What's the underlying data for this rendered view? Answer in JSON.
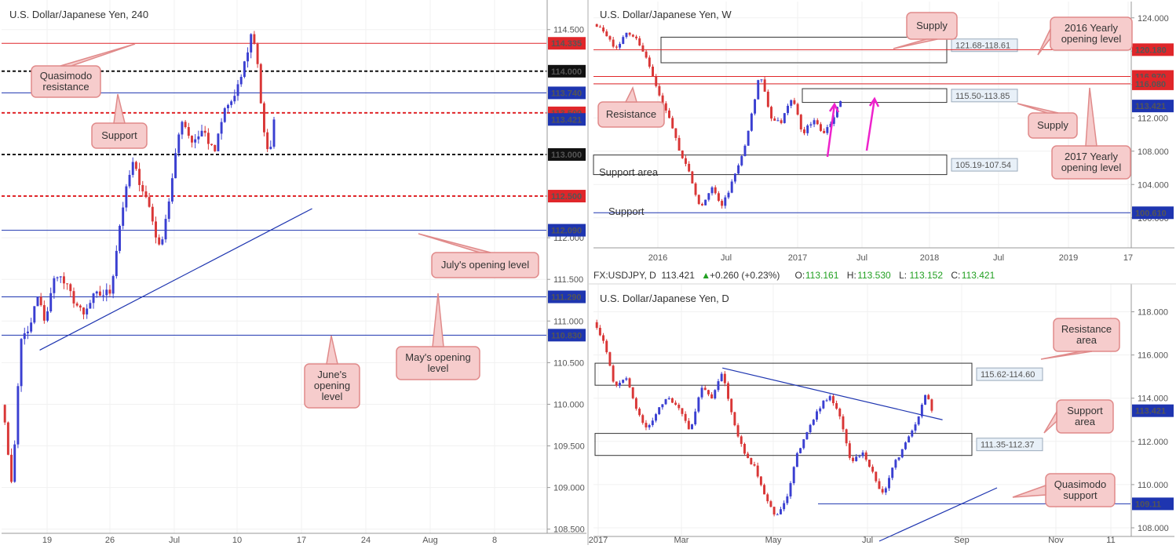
{
  "colors": {
    "bull": "#3a3fd1",
    "bear": "#d93636",
    "red_level": "#e0262a",
    "blue_level": "#1e35b0",
    "black_level": "#111111",
    "callout_fill": "#f6cccc",
    "callout_stroke": "#e08a8a",
    "magenta_arrow": "#ee22cc",
    "grid": "#f1f1f1"
  },
  "chart_data": [
    {
      "id": "h4",
      "type": "candlestick",
      "title": "U.S. Dollar/Japanese Yen, 240",
      "ylim": [
        108.45,
        114.78
      ],
      "x_labels": [
        "19",
        "26",
        "Jul",
        "10",
        "17",
        "24",
        "Aug",
        "8"
      ],
      "y_ticks": [
        "114.500",
        "114.000",
        "113.500",
        "113.000",
        "112.500",
        "112.000",
        "111.500",
        "111.000",
        "110.500",
        "110.000",
        "109.500",
        "109.000",
        "108.500"
      ],
      "levels": [
        {
          "value": 114.335,
          "label": "114.335",
          "color": "red",
          "style": "solid"
        },
        {
          "value": 114.0,
          "label": "114.000",
          "color": "black",
          "style": "dotted"
        },
        {
          "value": 113.74,
          "label": "113.740",
          "color": "blue",
          "style": "solid"
        },
        {
          "value": 113.5,
          "label": "113.500",
          "color": "red",
          "style": "dotted"
        },
        {
          "value": 113.0,
          "label": "113.000",
          "color": "black",
          "style": "dotted"
        },
        {
          "value": 112.5,
          "label": "112.500",
          "color": "red",
          "style": "dotted"
        },
        {
          "value": 112.09,
          "label": "112.090",
          "color": "blue",
          "style": "solid"
        },
        {
          "value": 111.29,
          "label": "111.290",
          "color": "blue",
          "style": "solid"
        },
        {
          "value": 110.83,
          "label": "110.830",
          "color": "blue",
          "style": "solid"
        }
      ],
      "current_price": {
        "value": 113.421,
        "label": "113.421"
      },
      "trendline": {
        "from": [
          0.07,
          110.65
        ],
        "to": [
          0.57,
          112.35
        ]
      },
      "series_path": [
        [
          0,
          110.05
        ],
        [
          0.02,
          109.0
        ],
        [
          0.035,
          110.8
        ],
        [
          0.05,
          110.85
        ],
        [
          0.065,
          111.3
        ],
        [
          0.08,
          111.0
        ],
        [
          0.1,
          111.6
        ],
        [
          0.12,
          111.4
        ],
        [
          0.15,
          111.05
        ],
        [
          0.17,
          111.3
        ],
        [
          0.2,
          111.35
        ],
        [
          0.22,
          112.3
        ],
        [
          0.24,
          112.9
        ],
        [
          0.27,
          112.4
        ],
        [
          0.29,
          111.85
        ],
        [
          0.31,
          112.55
        ],
        [
          0.33,
          113.45
        ],
        [
          0.35,
          113.15
        ],
        [
          0.37,
          113.3
        ],
        [
          0.39,
          113.0
        ],
        [
          0.41,
          113.55
        ],
        [
          0.43,
          113.7
        ],
        [
          0.45,
          114.2
        ],
        [
          0.46,
          114.5
        ],
        [
          0.47,
          114.1
        ],
        [
          0.48,
          113.3
        ],
        [
          0.49,
          112.95
        ],
        [
          0.5,
          113.42
        ]
      ],
      "annotations": [
        {
          "text": "Quasimodo\nresistance"
        },
        {
          "text": "Support"
        },
        {
          "text": "July's opening level"
        },
        {
          "text": "June's\nopening\nlevel"
        },
        {
          "text": "May's opening\nlevel"
        }
      ]
    },
    {
      "id": "weekly",
      "type": "candlestick",
      "title": "U.S. Dollar/Japanese Yen, W",
      "ylim": [
        96.4,
        125.2
      ],
      "x_labels": [
        "2016",
        "Jul",
        "2017",
        "Jul",
        "2018",
        "Jul",
        "2019",
        "17"
      ],
      "y_ticks": [
        "124.000",
        "120.000",
        "116.000",
        "112.000",
        "108.000",
        "104.000",
        "100.000"
      ],
      "levels": [
        {
          "value": 120.18,
          "label": "120.180",
          "color": "red"
        },
        {
          "value": 116.97,
          "label": "116.970",
          "color": "red"
        },
        {
          "value": 116.08,
          "label": "116.080",
          "color": "red"
        },
        {
          "value": 100.61,
          "label": "100.610",
          "color": "blue"
        }
      ],
      "current_price": {
        "value": 113.421,
        "label": "113.421"
      },
      "zones": [
        {
          "top": 121.68,
          "bottom": 118.61,
          "label": "121.68-118.61"
        },
        {
          "top": 115.5,
          "bottom": 113.85,
          "label": "115.50-113.85"
        },
        {
          "top": 107.54,
          "bottom": 105.19,
          "label": "105.19-107.54"
        }
      ],
      "series_path": [
        [
          0,
          123.5
        ],
        [
          0.02,
          122.5
        ],
        [
          0.04,
          120.0
        ],
        [
          0.06,
          122.0
        ],
        [
          0.08,
          121.5
        ],
        [
          0.1,
          119.0
        ],
        [
          0.12,
          115.0
        ],
        [
          0.14,
          112.0
        ],
        [
          0.16,
          108.0
        ],
        [
          0.18,
          105.0
        ],
        [
          0.2,
          101.0
        ],
        [
          0.22,
          103.5
        ],
        [
          0.24,
          101.5
        ],
        [
          0.26,
          104.5
        ],
        [
          0.28,
          108.0
        ],
        [
          0.3,
          114.0
        ],
        [
          0.31,
          117.5
        ],
        [
          0.33,
          112.0
        ],
        [
          0.35,
          111.5
        ],
        [
          0.37,
          114.5
        ],
        [
          0.39,
          110.0
        ],
        [
          0.41,
          112.0
        ],
        [
          0.43,
          110.0
        ],
        [
          0.45,
          112.5
        ],
        [
          0.46,
          114.0
        ]
      ],
      "annotations": [
        {
          "text": "Supply"
        },
        {
          "text": "2016 Yearly\nopening level"
        },
        {
          "text": "Resistance"
        },
        {
          "text": "Supply"
        },
        {
          "text": "2017 Yearly\nopening level"
        },
        {
          "text": "Support area"
        },
        {
          "text": "Support"
        }
      ]
    },
    {
      "id": "daily",
      "type": "candlestick",
      "title": "U.S. Dollar/Japanese Yen, D",
      "ylim": [
        107.6,
        119.0
      ],
      "x_labels": [
        "2017",
        "Mar",
        "May",
        "Jul",
        "Sep",
        "Nov",
        "11"
      ],
      "y_ticks": [
        "118.000",
        "116.000",
        "114.000",
        "112.000",
        "110.000",
        "108.000"
      ],
      "current_price": {
        "value": 113.421,
        "label": "113.421"
      },
      "zones": [
        {
          "top": 115.62,
          "bottom": 114.6,
          "label": "115.62-114.60"
        },
        {
          "top": 112.37,
          "bottom": 111.35,
          "label": "111.35-112.37"
        }
      ],
      "levels": [
        {
          "value": 109.11,
          "label": "109.11",
          "color": "blue"
        }
      ],
      "trendline": {
        "from": [
          0.24,
          115.4
        ],
        "to": [
          0.65,
          113.0
        ]
      },
      "series_path": [
        [
          0,
          117.5
        ],
        [
          0.02,
          116.5
        ],
        [
          0.04,
          114.5
        ],
        [
          0.06,
          115.0
        ],
        [
          0.08,
          113.5
        ],
        [
          0.1,
          112.5
        ],
        [
          0.12,
          113.5
        ],
        [
          0.14,
          114.0
        ],
        [
          0.16,
          113.5
        ],
        [
          0.18,
          112.5
        ],
        [
          0.2,
          114.5
        ],
        [
          0.22,
          114.0
        ],
        [
          0.24,
          115.3
        ],
        [
          0.26,
          113.0
        ],
        [
          0.28,
          111.5
        ],
        [
          0.3,
          110.8
        ],
        [
          0.32,
          109.5
        ],
        [
          0.34,
          108.5
        ],
        [
          0.36,
          109.3
        ],
        [
          0.38,
          111.5
        ],
        [
          0.4,
          112.5
        ],
        [
          0.42,
          113.5
        ],
        [
          0.44,
          114.2
        ],
        [
          0.46,
          113.0
        ],
        [
          0.48,
          111.0
        ],
        [
          0.5,
          111.5
        ],
        [
          0.52,
          110.5
        ],
        [
          0.54,
          109.5
        ],
        [
          0.56,
          111.0
        ],
        [
          0.58,
          111.8
        ],
        [
          0.6,
          112.8
        ],
        [
          0.62,
          114.3
        ],
        [
          0.63,
          113.42
        ]
      ],
      "annotations": [
        {
          "text": "Resistance\narea"
        },
        {
          "text": "Support\narea"
        },
        {
          "text": "Quasimodo\nsupport"
        }
      ]
    }
  ],
  "ticker_bar": {
    "symbol": "FX:USDJPY, D",
    "last": "113.421",
    "change": "+0.260 (+0.23%)",
    "o_label": "O:",
    "o": "113.161",
    "h_label": "H:",
    "h": "113.530",
    "l_label": "L:",
    "l": "113.152",
    "c_label": "C:",
    "c": "113.421"
  }
}
